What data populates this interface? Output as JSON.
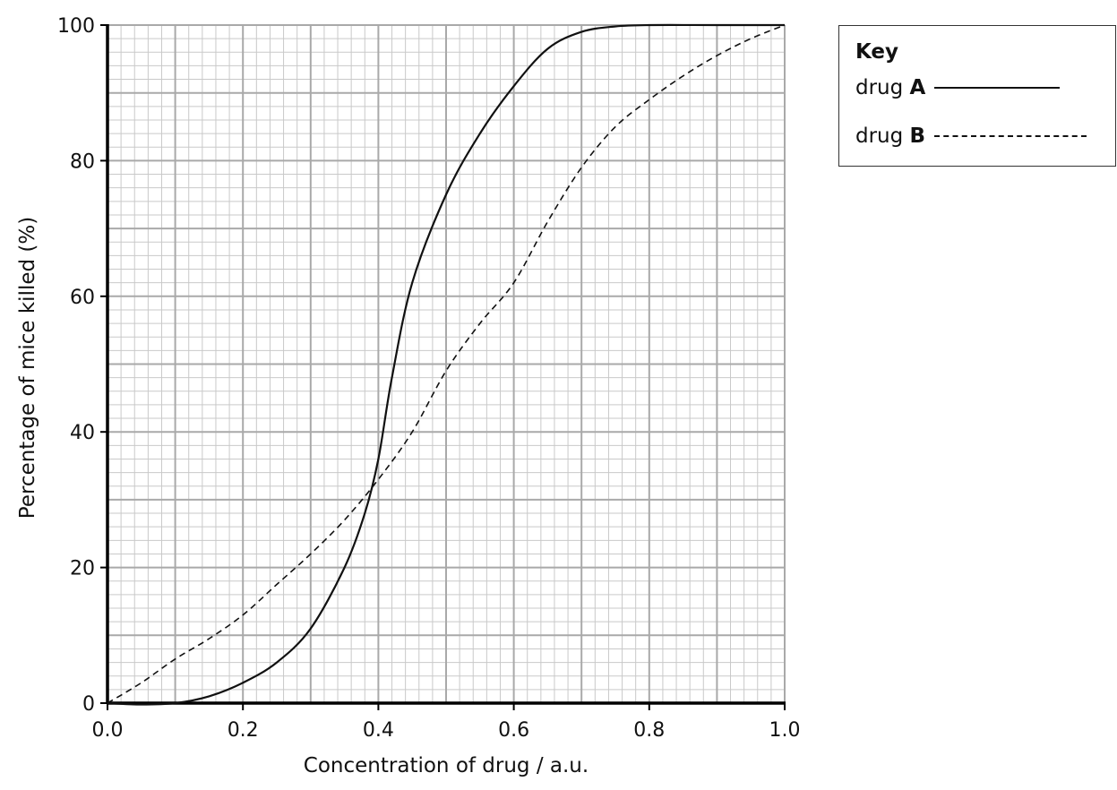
{
  "chart_data": {
    "type": "line",
    "xlabel": "Concentration of drug / a.u.",
    "ylabel": "Percentage of mice killed (%)",
    "xlim": [
      0.0,
      1.0
    ],
    "ylim": [
      0,
      100
    ],
    "xticks": [
      "0.0",
      "0.2",
      "0.4",
      "0.6",
      "0.8",
      "1.0"
    ],
    "yticks": [
      "0",
      "20",
      "40",
      "60",
      "80",
      "100"
    ],
    "grid": true,
    "legend": {
      "title": "Key",
      "position": "top-right",
      "entries": [
        {
          "prefix": "drug",
          "name": "A",
          "style": "solid"
        },
        {
          "prefix": "drug",
          "name": "B",
          "style": "dashed"
        }
      ]
    },
    "series": [
      {
        "name": "A",
        "style": "solid",
        "x": [
          0.0,
          0.05,
          0.1,
          0.15,
          0.2,
          0.25,
          0.3,
          0.35,
          0.38,
          0.4,
          0.42,
          0.45,
          0.5,
          0.55,
          0.6,
          0.65,
          0.7,
          0.75,
          0.8,
          0.9,
          1.0
        ],
        "y": [
          0,
          -0.2,
          0,
          1,
          3,
          6,
          11,
          20,
          28,
          36,
          48,
          62,
          75,
          84,
          91,
          96.5,
          99,
          99.8,
          100,
          100,
          100
        ]
      },
      {
        "name": "B",
        "style": "dashed",
        "x": [
          0.0,
          0.05,
          0.1,
          0.15,
          0.2,
          0.25,
          0.3,
          0.35,
          0.4,
          0.45,
          0.5,
          0.55,
          0.6,
          0.65,
          0.7,
          0.75,
          0.8,
          0.85,
          0.9,
          0.95,
          1.0
        ],
        "y": [
          0,
          3,
          6.5,
          9.5,
          13,
          17.5,
          22,
          27,
          33,
          40,
          49,
          56,
          62,
          71,
          79,
          85,
          89,
          92.5,
          95.5,
          98,
          100
        ]
      }
    ]
  }
}
